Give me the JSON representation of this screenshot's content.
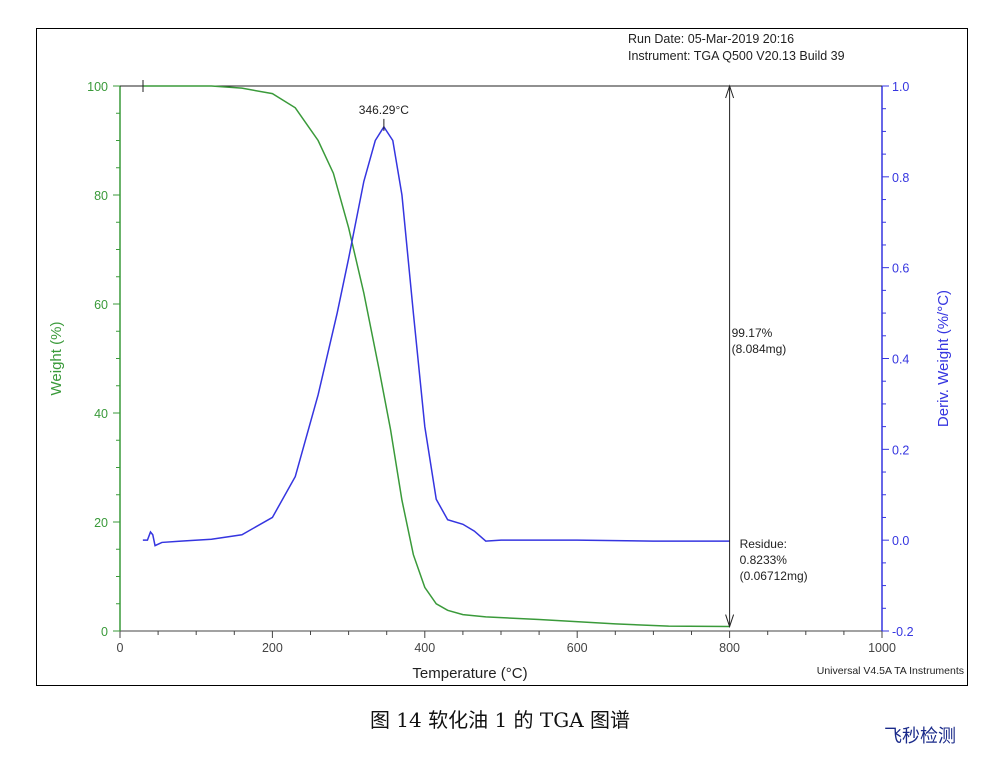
{
  "header": {
    "run_date": "Run Date: 05-Mar-2019 20:16",
    "instrument": "Instrument: TGA Q500 V20.13 Build 39"
  },
  "footer": "Universal V4.5A TA Instruments",
  "caption": "图 14 软化油 1 的 TGA 图谱",
  "watermark": "飞秒检测",
  "chart_data": {
    "type": "line",
    "xlabel": "Temperature (°C)",
    "ylabel": "Weight (%)",
    "y2label": "Deriv. Weight (%/°C)",
    "xlim": [
      0,
      1000
    ],
    "ylim": [
      0,
      100
    ],
    "y2lim": [
      -0.2,
      1.0
    ],
    "xticks": [
      "0",
      "200",
      "400",
      "600",
      "800",
      "1000"
    ],
    "yticks": [
      "0",
      "20",
      "40",
      "60",
      "80",
      "100"
    ],
    "y2ticks": [
      "-0.2",
      "0.0",
      "0.2",
      "0.4",
      "0.6",
      "0.8",
      "1.0"
    ],
    "colors": {
      "weight": "#3a9a3a",
      "deriv": "#3535e0"
    },
    "series": [
      {
        "axis": "left",
        "points": [
          [
            30,
            100
          ],
          [
            120,
            100
          ],
          [
            160,
            99.6
          ],
          [
            200,
            98.6
          ],
          [
            230,
            96
          ],
          [
            260,
            90
          ],
          [
            280,
            84
          ],
          [
            300,
            74
          ],
          [
            320,
            62
          ],
          [
            340,
            48
          ],
          [
            355,
            37
          ],
          [
            370,
            24
          ],
          [
            385,
            14
          ],
          [
            400,
            8
          ],
          [
            415,
            5
          ],
          [
            430,
            3.8
          ],
          [
            450,
            3
          ],
          [
            480,
            2.6
          ],
          [
            550,
            2.1
          ],
          [
            650,
            1.3
          ],
          [
            720,
            0.9
          ],
          [
            800,
            0.82
          ]
        ]
      },
      {
        "axis": "right",
        "points": [
          [
            30,
            0.0
          ],
          [
            36,
            0.0
          ],
          [
            40,
            0.018
          ],
          [
            43,
            0.012
          ],
          [
            46,
            -0.012
          ],
          [
            55,
            -0.005
          ],
          [
            80,
            -0.002
          ],
          [
            120,
            0.002
          ],
          [
            160,
            0.012
          ],
          [
            200,
            0.05
          ],
          [
            230,
            0.14
          ],
          [
            260,
            0.32
          ],
          [
            285,
            0.5
          ],
          [
            300,
            0.62
          ],
          [
            320,
            0.79
          ],
          [
            335,
            0.88
          ],
          [
            346.29,
            0.91
          ],
          [
            358,
            0.88
          ],
          [
            370,
            0.76
          ],
          [
            385,
            0.5
          ],
          [
            400,
            0.25
          ],
          [
            415,
            0.09
          ],
          [
            430,
            0.045
          ],
          [
            450,
            0.035
          ],
          [
            465,
            0.02
          ],
          [
            480,
            -0.002
          ],
          [
            500,
            0.0
          ],
          [
            600,
            0.0
          ],
          [
            700,
            -0.002
          ],
          [
            800,
            -0.002
          ]
        ]
      }
    ],
    "annotations": {
      "peak": "346.29°C",
      "loss_pct": "99.17%",
      "loss_mg": "(8.084mg)",
      "residue_label": "Residue:",
      "residue_pct": "0.8233%",
      "residue_mg": "(0.06712mg)"
    }
  }
}
